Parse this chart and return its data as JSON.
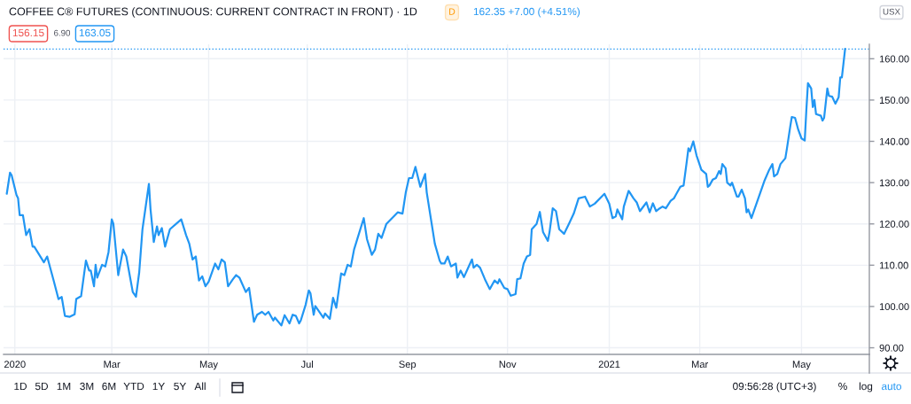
{
  "chart_data": {
    "type": "line",
    "title": "COFFEE C® FUTURES (CONTINUOUS: CURRENT CONTRACT IN FRONT) · 1D",
    "subtitle": "162.35 +7.00 (+4.51%)",
    "annotations": [
      "D",
      "156.15",
      "6.90",
      "163.05",
      "USX",
      "1D",
      "5D",
      "1M",
      "3M",
      "6M",
      "YTD",
      "1Y",
      "5Y",
      "All",
      "09:56:28 (UTC+3)",
      "%",
      "log",
      "auto"
    ],
    "x": [
      "2019-12-28",
      "2019-12-30",
      "2019-12-31",
      "2020-01-03",
      "2020-01-04",
      "2020-01-05",
      "2020-01-07",
      "2020-01-09",
      "2020-01-11",
      "2020-01-13",
      "2020-01-14",
      "2020-01-20",
      "2020-01-22",
      "2020-01-26",
      "2020-01-29",
      "2020-01-31",
      "2020-02-02",
      "2020-02-05",
      "2020-02-08",
      "2020-02-09",
      "2020-02-12",
      "2020-02-15",
      "2020-02-17",
      "2020-02-18",
      "2020-02-20",
      "2020-02-21",
      "2020-02-22",
      "2020-02-25",
      "2020-02-27",
      "2020-02-29",
      "2020-03-02",
      "2020-03-03",
      "2020-03-06",
      "2020-03-09",
      "2020-03-11",
      "2020-03-15",
      "2020-03-17",
      "2020-03-19",
      "2020-03-21",
      "2020-03-25",
      "2020-03-26",
      "2020-03-28",
      "2020-03-30",
      "2020-03-31",
      "2020-04-02",
      "2020-04-04",
      "2020-04-07",
      "2020-04-14",
      "2020-04-17",
      "2020-04-19",
      "2020-04-21",
      "2020-04-23",
      "2020-04-25",
      "2020-04-27",
      "2020-04-29",
      "2020-05-01",
      "2020-05-05",
      "2020-05-07",
      "2020-05-09",
      "2020-05-11",
      "2020-05-13",
      "2020-05-16",
      "2020-05-18",
      "2020-05-20",
      "2020-05-24",
      "2020-05-26",
      "2020-05-29",
      "2020-05-31",
      "2020-06-03",
      "2020-06-05",
      "2020-06-07",
      "2020-06-10",
      "2020-06-11",
      "2020-06-15",
      "2020-06-17",
      "2020-06-20",
      "2020-06-22",
      "2020-06-24",
      "2020-06-26",
      "2020-06-27",
      "2020-06-30",
      "2020-07-02",
      "2020-07-03",
      "2020-07-05",
      "2020-07-06",
      "2020-07-11",
      "2020-07-12",
      "2020-07-15",
      "2020-07-17",
      "2020-07-19",
      "2020-07-22",
      "2020-07-24",
      "2020-07-26",
      "2020-07-28",
      "2020-07-30",
      "2020-08-05",
      "2020-08-07",
      "2020-08-10",
      "2020-08-12",
      "2020-08-14",
      "2020-08-16",
      "2020-08-19",
      "2020-08-26",
      "2020-08-29",
      "2020-08-31",
      "2020-09-02",
      "2020-09-04",
      "2020-09-06",
      "2020-09-09",
      "2020-09-12",
      "2020-09-13",
      "2020-09-18",
      "2020-09-21",
      "2020-09-22",
      "2020-09-24",
      "2020-09-26",
      "2020-09-28",
      "2020-10-01",
      "2020-10-02",
      "2020-10-04",
      "2020-10-06",
      "2020-10-09",
      "2020-10-11",
      "2020-10-12",
      "2020-10-14",
      "2020-10-16",
      "2020-10-19",
      "2020-10-22",
      "2020-10-25",
      "2020-10-27",
      "2020-10-28",
      "2020-10-31",
      "2020-11-02",
      "2020-11-04",
      "2020-11-07",
      "2020-11-08",
      "2020-11-10",
      "2020-11-12",
      "2020-11-14",
      "2020-11-16",
      "2020-11-17",
      "2020-11-20",
      "2020-11-22",
      "2020-11-24",
      "2020-11-27",
      "2020-11-28",
      "2020-11-30",
      "2020-12-02",
      "2020-12-04",
      "2020-12-07",
      "2020-12-10",
      "2020-12-13",
      "2020-12-16",
      "2020-12-20",
      "2020-12-23",
      "2020-12-26",
      "2021-01-01",
      "2021-01-04",
      "2021-01-06",
      "2021-01-08",
      "2021-01-09",
      "2021-01-12",
      "2021-01-13",
      "2021-01-16",
      "2021-01-19",
      "2021-01-21",
      "2021-01-23",
      "2021-01-27",
      "2021-01-29",
      "2021-01-31",
      "2021-02-02",
      "2021-02-04",
      "2021-02-06",
      "2021-02-08",
      "2021-02-11",
      "2021-02-13",
      "2021-02-17",
      "2021-02-19",
      "2021-02-21",
      "2021-02-22",
      "2021-02-23",
      "2021-02-25",
      "2021-02-27",
      "2021-03-02",
      "2021-03-05",
      "2021-03-06",
      "2021-03-07",
      "2021-03-09",
      "2021-03-11",
      "2021-03-13",
      "2021-03-14",
      "2021-03-15",
      "2021-03-17",
      "2021-03-18",
      "2021-03-20",
      "2021-03-21",
      "2021-03-24",
      "2021-03-25",
      "2021-03-27",
      "2021-03-29",
      "2021-03-30",
      "2021-03-31",
      "2021-04-02",
      "2021-04-10",
      "2021-04-13",
      "2021-04-15",
      "2021-04-16",
      "2021-04-18",
      "2021-04-20",
      "2021-04-23",
      "2021-04-24",
      "2021-04-26",
      "2021-04-27",
      "2021-04-29",
      "2021-05-01",
      "2021-05-03",
      "2021-05-05",
      "2021-05-06",
      "2021-05-07",
      "2021-05-09",
      "2021-05-10",
      "2021-05-11",
      "2021-05-12",
      "2021-05-15",
      "2021-05-16",
      "2021-05-17",
      "2021-05-19",
      "2021-05-20",
      "2021-05-22",
      "2021-05-24",
      "2021-05-26",
      "2021-05-27",
      "2021-05-28",
      "2021-05-30"
    ],
    "series": [
      {
        "color": "#2196f3",
        "values": [
          127.3,
          132.4,
          131.8,
          127.0,
          126.2,
          122.1,
          122.1,
          117.3,
          118.7,
          114.5,
          114.5,
          110.7,
          112.1,
          106.3,
          101.8,
          102.3,
          97.7,
          97.5,
          98.1,
          101.8,
          102.5,
          111.1,
          108.7,
          108.7,
          104.9,
          110.1,
          107.0,
          110.1,
          109.7,
          113.2,
          121.1,
          120.0,
          107.6,
          113.8,
          112.1,
          103.5,
          102.4,
          108.3,
          118.7,
          129.7,
          123.5,
          115.6,
          119.4,
          117.3,
          119.0,
          114.5,
          118.7,
          121.1,
          117.3,
          115.2,
          111.4,
          112.1,
          106.3,
          107.3,
          104.9,
          106.0,
          110.4,
          109.0,
          111.4,
          110.7,
          104.9,
          106.6,
          107.6,
          107.0,
          103.5,
          104.5,
          96.3,
          98.0,
          98.7,
          98.0,
          98.7,
          96.6,
          97.3,
          95.4,
          97.9,
          95.9,
          98.0,
          97.7,
          95.9,
          96.6,
          100.4,
          103.9,
          103.2,
          98.0,
          100.1,
          97.3,
          98.3,
          97.0,
          102.1,
          99.7,
          108.0,
          107.6,
          110.1,
          109.7,
          113.8,
          121.4,
          116.3,
          112.5,
          113.8,
          117.6,
          116.6,
          120.0,
          122.8,
          122.5,
          127.6,
          131.1,
          131.1,
          133.8,
          129.0,
          132.1,
          127.6,
          115.2,
          111.1,
          110.4,
          110.4,
          112.1,
          109.7,
          110.4,
          107.0,
          108.7,
          107.1,
          109.7,
          111.4,
          109.4,
          110.1,
          109.4,
          106.6,
          104.2,
          106.3,
          105.6,
          106.6,
          104.5,
          104.2,
          102.6,
          103.0,
          106.6,
          106.8,
          110.4,
          112.1,
          112.5,
          118.7,
          120.0,
          122.9,
          118.0,
          115.9,
          118.0,
          123.8,
          123.1,
          118.7,
          117.6,
          120.0,
          122.5,
          126.2,
          126.6,
          124.2,
          124.9,
          127.3,
          124.9,
          121.4,
          121.8,
          123.5,
          121.1,
          124.2,
          128.0,
          126.2,
          125.2,
          123.1,
          125.2,
          122.8,
          125.0,
          123.1,
          123.7,
          124.2,
          123.8,
          125.6,
          126.2,
          129.0,
          129.3,
          135.2,
          138.3,
          137.6,
          140.0,
          136.6,
          133.1,
          132.1,
          129.0,
          129.3,
          130.7,
          131.1,
          132.8,
          132.1,
          134.5,
          133.5,
          130.0,
          129.3,
          130.0,
          126.6,
          126.6,
          128.3,
          126.2,
          122.8,
          123.5,
          121.4,
          130.4,
          133.1,
          134.5,
          131.5,
          132.1,
          134.5,
          135.9,
          138.3,
          143.5,
          145.9,
          145.7,
          142.8,
          140.7,
          140.2,
          147.6,
          154.1,
          152.8,
          148.3,
          150.0,
          146.6,
          146.2,
          145.0,
          145.7,
          152.8,
          151.0,
          150.8,
          149.1,
          150.7,
          155.5,
          155.5,
          162.4
        ]
      }
    ],
    "xlim": [
      "2019-12-26",
      "2021-06-14"
    ],
    "xticks": [
      {
        "value": "2020-01-02",
        "label": "2020"
      },
      {
        "value": "2020-03-02",
        "label": "Mar"
      },
      {
        "value": "2020-05-01",
        "label": "May"
      },
      {
        "value": "2020-07-01",
        "label": "Jul"
      },
      {
        "value": "2020-09-01",
        "label": "Sep"
      },
      {
        "value": "2020-11-02",
        "label": "Nov"
      },
      {
        "value": "2021-01-04",
        "label": "2021"
      },
      {
        "value": "2021-03-01",
        "label": "Mar"
      },
      {
        "value": "2021-05-03",
        "label": "May"
      }
    ],
    "ylim": [
      88.4,
      163.5
    ],
    "yticks": [
      {
        "value": 90,
        "label": "90.00"
      },
      {
        "value": 100,
        "label": "100.00"
      },
      {
        "value": 110,
        "label": "110.00"
      },
      {
        "value": 120,
        "label": "120.00"
      },
      {
        "value": 130,
        "label": "130.00"
      },
      {
        "value": 140,
        "label": "140.00"
      },
      {
        "value": 150,
        "label": "150.00"
      },
      {
        "value": 160,
        "label": "160.00"
      }
    ],
    "ref_lines": [
      {
        "axis": "y",
        "value": 162.35,
        "color": "#2196f3",
        "line_style": "dotted"
      }
    ],
    "grid": true
  }
}
